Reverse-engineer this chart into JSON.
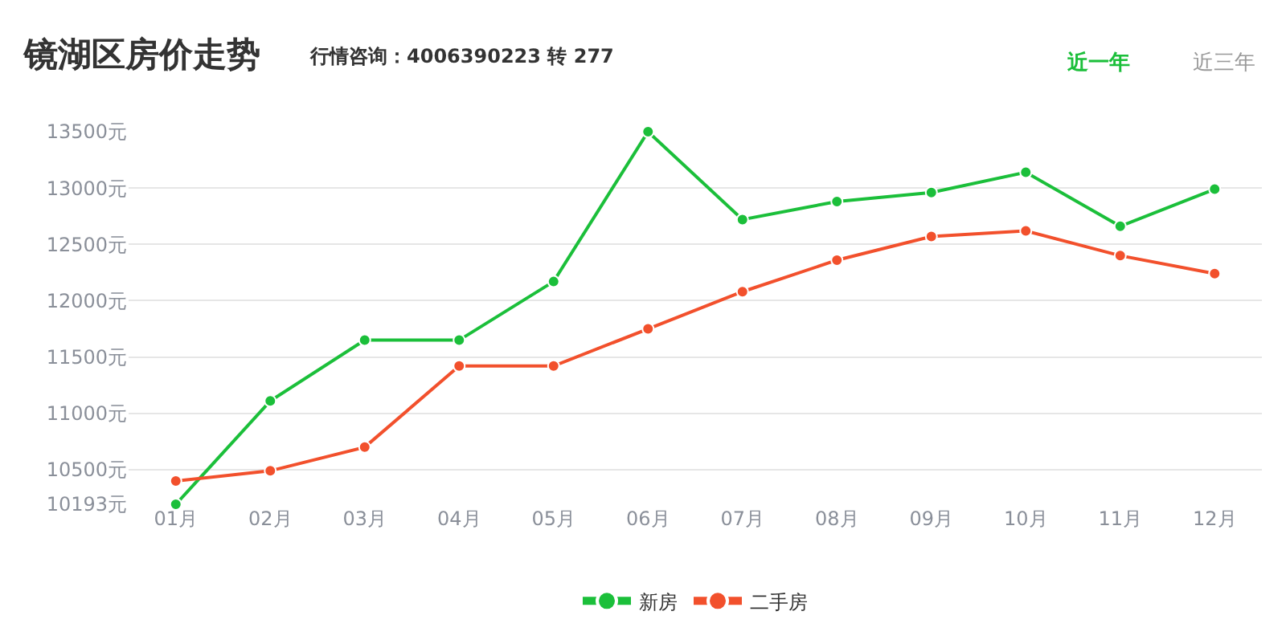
{
  "chart_data": {
    "type": "line",
    "title": "镜湖区房价走势",
    "subtitle": "行情咨询：4006390223 转 277",
    "annotations": [
      "近一年",
      "近三年"
    ],
    "categories": [
      "01月",
      "02月",
      "03月",
      "04月",
      "05月",
      "06月",
      "07月",
      "08月",
      "09月",
      "10月",
      "11月",
      "12月"
    ],
    "series": [
      {
        "name": "新房",
        "color": "#1bbf3a",
        "values": [
          10193,
          11110,
          11650,
          11650,
          12170,
          13500,
          12720,
          12880,
          12960,
          13140,
          12660,
          12990
        ]
      },
      {
        "name": "二手房",
        "color": "#f2502c",
        "values": [
          10400,
          10490,
          10700,
          11420,
          11420,
          11750,
          12080,
          12360,
          12570,
          12620,
          12400,
          12240
        ]
      }
    ],
    "ylim": [
      10193,
      13500
    ],
    "yticks": [
      {
        "value": 10193,
        "label": "10193元"
      },
      {
        "value": 10500,
        "label": "10500元"
      },
      {
        "value": 11000,
        "label": "11000元"
      },
      {
        "value": 11500,
        "label": "11500元"
      },
      {
        "value": 12000,
        "label": "12000元"
      },
      {
        "value": 12500,
        "label": "12500元"
      },
      {
        "value": 13000,
        "label": "13000元"
      },
      {
        "value": 13500,
        "label": "13500元"
      }
    ],
    "grid": "y",
    "legend": "bottom",
    "marker": "circle",
    "line_style": "solid"
  }
}
